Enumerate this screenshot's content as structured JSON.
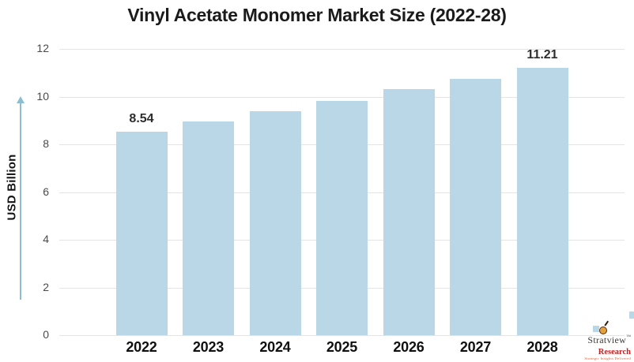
{
  "chart_data": {
    "type": "bar",
    "title": "Vinyl Acetate Monomer Market Size (2022-28)",
    "categories": [
      "2022",
      "2023",
      "2024",
      "2025",
      "2026",
      "2027",
      "2028"
    ],
    "values": [
      8.54,
      8.95,
      9.39,
      9.81,
      10.3,
      10.75,
      11.21
    ],
    "xlabel": "",
    "ylabel": "USD Billion",
    "ylim": [
      0,
      12
    ],
    "yticks": [
      12,
      10,
      8,
      6,
      4,
      2,
      0
    ],
    "grid": "horizontal",
    "legend": "none",
    "bar_color": "#b9d7e7",
    "data_labels": [
      {
        "index": 0,
        "text": "8.54"
      },
      {
        "index": 6,
        "text": "11.21"
      }
    ]
  },
  "branding": {
    "name": "Stratview",
    "trademark": "™",
    "sub": "Research",
    "tagline": "Strategic Insights Delivered"
  },
  "colors": {
    "bar": "#b9d7e7",
    "arrow": "#8cbed2",
    "gridline": "#e4e4e4",
    "title_text": "#1b1b1b",
    "tick_text": "#4a4a4a",
    "brand_red": "#c02121"
  }
}
